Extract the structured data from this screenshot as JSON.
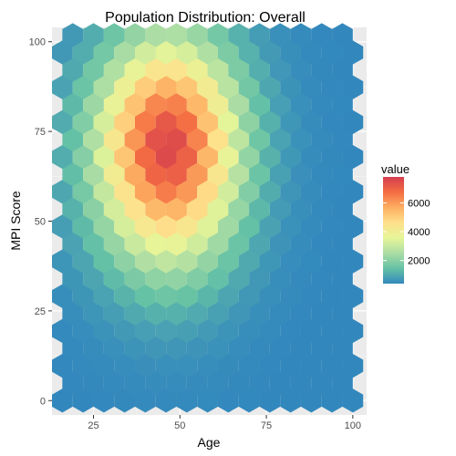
{
  "chart_data": {
    "type": "heatmap",
    "title": "Population Distribution: Overall",
    "xlabel": "Age",
    "ylabel": "MPI Score",
    "xlim": [
      13,
      104
    ],
    "ylim": [
      -4,
      104
    ],
    "x_ticks": [
      25,
      50,
      75,
      100
    ],
    "y_ticks": [
      0,
      25,
      50,
      75,
      100
    ],
    "legend": {
      "title": "value",
      "ticks": [
        2000,
        4000,
        6000
      ],
      "min": 400,
      "max": 7800,
      "position": "right"
    },
    "grid": true,
    "palette": [
      "#3288bd",
      "#66c2a5",
      "#abdda4",
      "#e6f598",
      "#fee08b",
      "#fdae61",
      "#f46d43",
      "#d53e4f"
    ],
    "hex_bins": {
      "x_start": 16,
      "x_step": 6,
      "y_start": 0,
      "y_step": 4.85,
      "count_note": "",
      "model": {
        "center_age": 46.5,
        "center_score": 71,
        "peak": 7600,
        "floor": 400,
        "sigma_age": 14,
        "sigma_score_low": 22,
        "sigma_score_high": 20
      }
    }
  }
}
